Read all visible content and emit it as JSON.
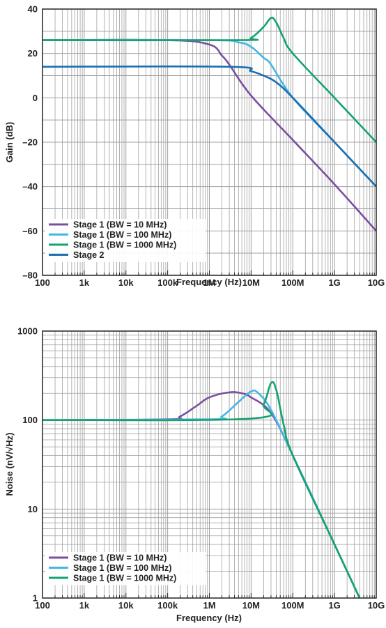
{
  "colors": {
    "purple": "#7a4fa0",
    "light_blue": "#44b6e6",
    "green": "#13a36f",
    "dark_blue": "#1a6fb0",
    "grid": "#a0a0a0",
    "axis": "#222222"
  },
  "chart_data": [
    {
      "type": "line",
      "xscale": "log",
      "xlim": [
        100,
        10000000000
      ],
      "ylim": [
        -80,
        40
      ],
      "xlabel": "Frequency (Hz)",
      "ylabel": "Gain (dB)",
      "xticks": [
        "100",
        "1k",
        "10k",
        "100k",
        "1M",
        "10M",
        "100M",
        "1G",
        "10G"
      ],
      "yticks": [
        "40",
        "20",
        "0",
        "–20",
        "–40",
        "–60",
        "–80"
      ],
      "legend_position": "bottom-left",
      "series": [
        {
          "name": "Stage 1 (BW = 10 MHz)",
          "color": "#7a4fa0",
          "x": [
            100,
            100000,
            1000000,
            2000000,
            3000000,
            10000000,
            100000000,
            1000000000,
            10000000000
          ],
          "y": [
            26,
            26,
            24,
            19,
            15,
            1,
            -19,
            -39,
            -60
          ]
        },
        {
          "name": "Stage 1 (BW = 100 MHz)",
          "color": "#44b6e6",
          "x": [
            100,
            1000000,
            5000000,
            10000000,
            20000000,
            30000000,
            100000000,
            1000000000,
            10000000000
          ],
          "y": [
            26,
            26,
            25,
            23,
            18,
            15,
            0,
            -20,
            -40
          ]
        },
        {
          "name": "Stage 1 (BW = 1000 MHz)",
          "color": "#13a36f",
          "x": [
            100,
            5000000,
            10000000,
            20000000,
            30000000,
            40000000,
            60000000,
            100000000,
            1000000000,
            10000000000
          ],
          "y": [
            26,
            26,
            27,
            32,
            36,
            34,
            27,
            20,
            0,
            -20
          ]
        },
        {
          "name": "Stage 2",
          "color": "#1a6fb0",
          "x": [
            100,
            3000000,
            10000000,
            20000000,
            40000000,
            100000000,
            1000000000,
            10000000000
          ],
          "y": [
            14,
            14,
            12,
            10,
            7,
            0,
            -20,
            -40
          ]
        }
      ]
    },
    {
      "type": "line",
      "xscale": "log",
      "yscale": "log",
      "xlim": [
        100,
        10000000000
      ],
      "ylim": [
        1,
        1000
      ],
      "xlabel": "Frequency (Hz)",
      "ylabel": "Noise (nV/√Hz)",
      "xticks": [
        "100",
        "1k",
        "10k",
        "100k",
        "1M",
        "10M",
        "100M",
        "1G",
        "10G"
      ],
      "yticks": [
        "1000",
        "100",
        "10",
        "1"
      ],
      "legend_position": "bottom-left",
      "series": [
        {
          "name": "Stage 1 (BW = 10 MHz)",
          "color": "#7a4fa0",
          "x": [
            100,
            100000,
            200000,
            500000,
            1000000,
            3000000,
            6000000,
            10000000,
            30000000,
            100000000,
            1000000000,
            4000000000
          ],
          "y": [
            100,
            102,
            110,
            145,
            180,
            205,
            200,
            180,
            120,
            40,
            4,
            1
          ]
        },
        {
          "name": "Stage 1 (BW = 100 MHz)",
          "color": "#44b6e6",
          "x": [
            100,
            1000000,
            2000000,
            5000000,
            10000000,
            15000000,
            30000000,
            100000000,
            1000000000,
            4000000000
          ],
          "y": [
            100,
            102,
            110,
            160,
            210,
            200,
            130,
            40,
            4,
            1
          ]
        },
        {
          "name": "Stage 1 (BW = 1000 MHz)",
          "color": "#13a36f",
          "x": [
            100,
            10000000,
            20000000,
            30000000,
            40000000,
            60000000,
            100000000,
            1000000000,
            4000000000
          ],
          "y": [
            100,
            104,
            150,
            260,
            220,
            90,
            40,
            4,
            1
          ]
        }
      ]
    }
  ]
}
